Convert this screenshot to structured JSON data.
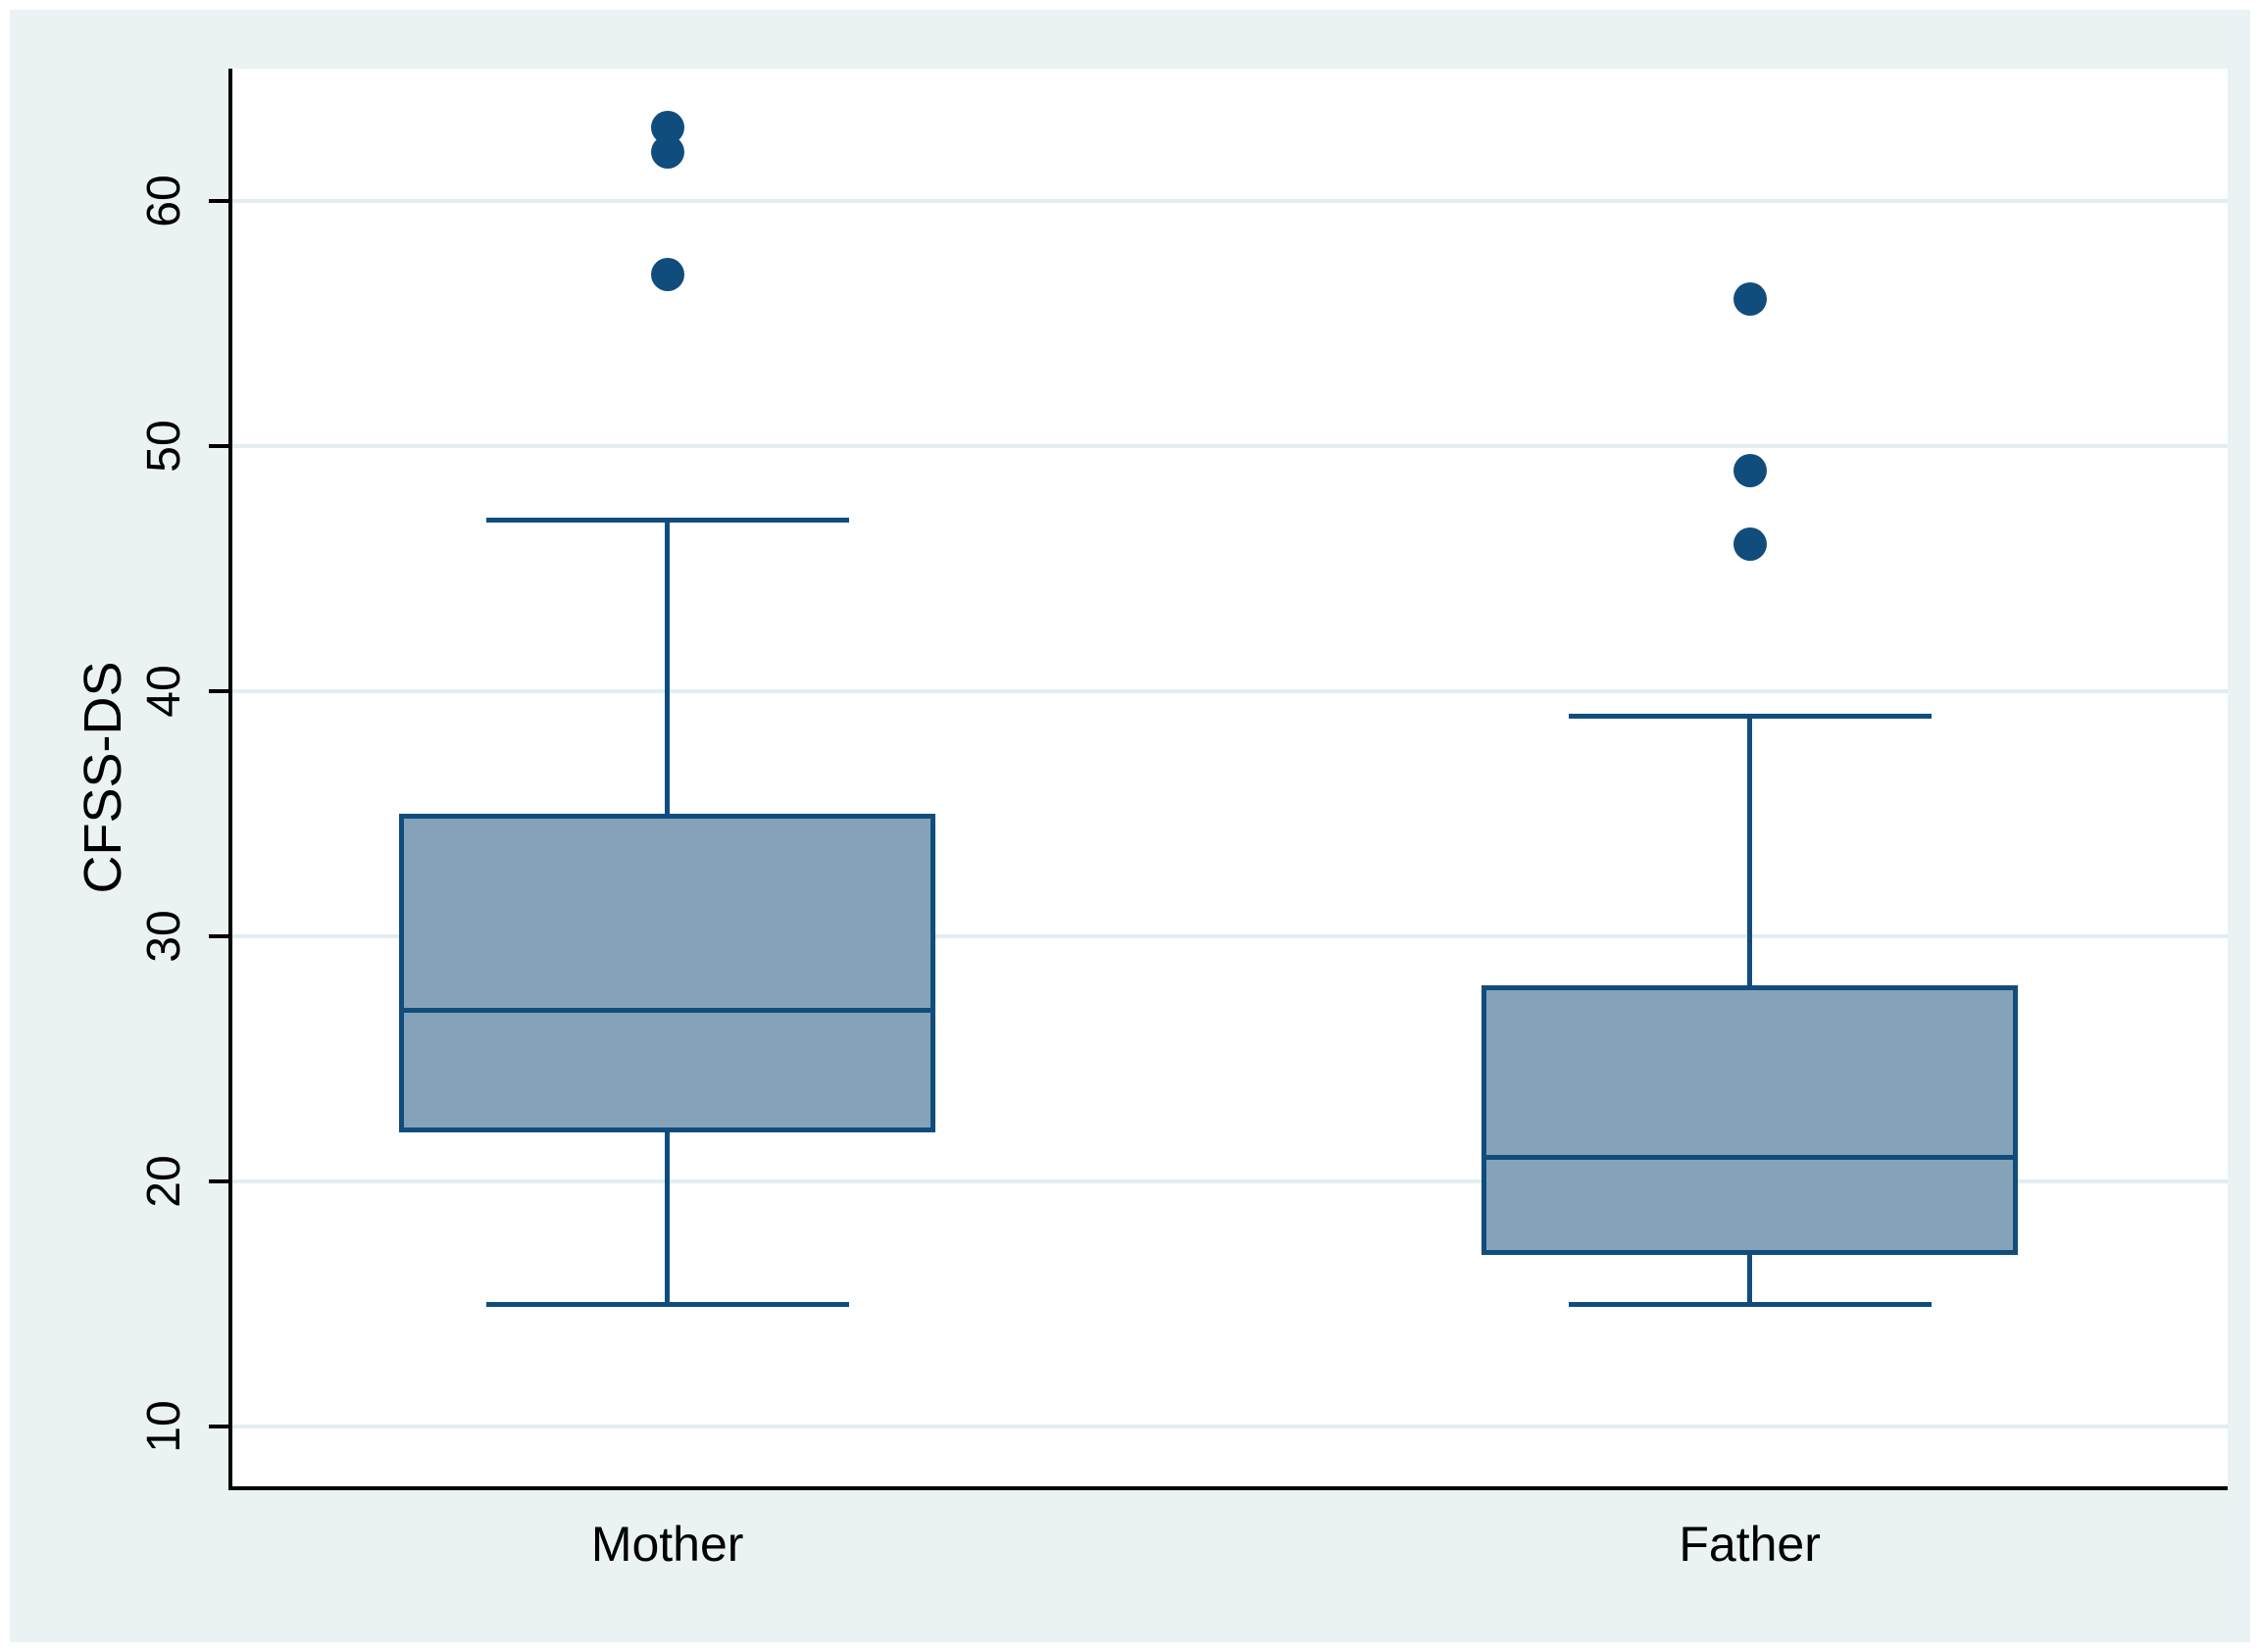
{
  "chart_data": {
    "type": "boxplot",
    "title": "",
    "ylabel": "CFSS-DS",
    "xlabel": "",
    "ylim": [
      7.56,
      65.4
    ],
    "yticks": [
      10,
      20,
      30,
      40,
      50,
      60
    ],
    "grid": true,
    "categories": [
      "Mother",
      "Father"
    ],
    "series": [
      {
        "name": "Mother",
        "whisker_low": 15,
        "q1": 22,
        "median": 27,
        "q3": 35,
        "whisker_high": 47,
        "outliers": [
          57,
          62,
          63
        ]
      },
      {
        "name": "Father",
        "whisker_low": 15,
        "q1": 17,
        "median": 21,
        "q3": 28,
        "whisker_high": 39,
        "outliers": [
          46,
          49,
          56
        ]
      }
    ],
    "colors": {
      "page_bg": "#eaf2f3",
      "plot_bg": "#ffffff",
      "grid": "#e2edf0",
      "axis": "#000000",
      "text": "#000000",
      "box_fill": "#84a3b8",
      "box_border": "#114d7c",
      "outlier": "#114d7c"
    }
  }
}
